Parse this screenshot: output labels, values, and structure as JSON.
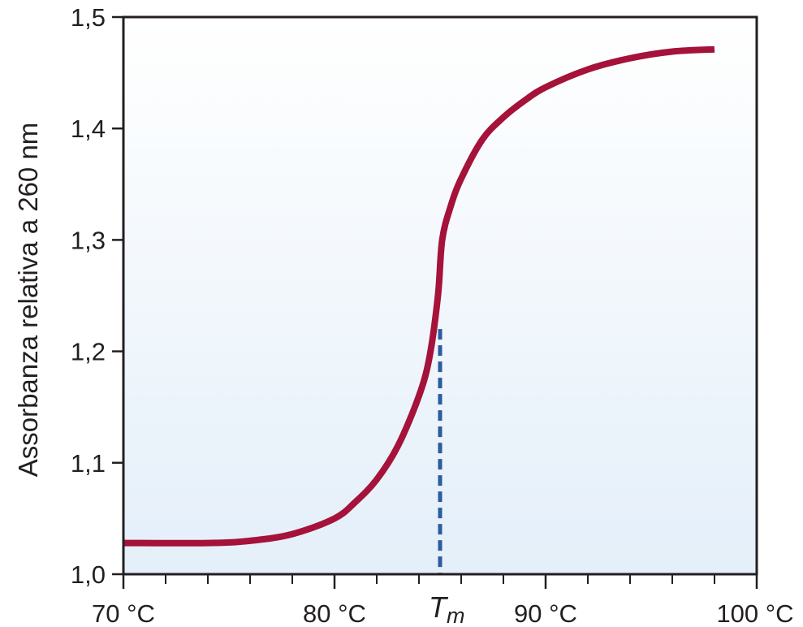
{
  "chart_data": {
    "type": "line",
    "title": "",
    "ylabel": "Assorbanza relativa a 260 nm",
    "xlabel": "",
    "xlim": [
      70,
      100
    ],
    "ylim": [
      1.0,
      1.5
    ],
    "x_ticks": [
      {
        "value": 70,
        "label": "70 °C"
      },
      {
        "value": 80,
        "label": "80 °C"
      },
      {
        "value": 90,
        "label": "90 °C"
      },
      {
        "value": 100,
        "label": "100 °C"
      }
    ],
    "x_minor_step": 1,
    "y_ticks": [
      {
        "value": 1.0,
        "label": "1,0"
      },
      {
        "value": 1.1,
        "label": "1,1"
      },
      {
        "value": 1.2,
        "label": "1,2"
      },
      {
        "value": 1.3,
        "label": "1,3"
      },
      {
        "value": 1.4,
        "label": "1,4"
      },
      {
        "value": 1.5,
        "label": "1,5"
      }
    ],
    "grid": false,
    "series": [
      {
        "color": "#a5123a",
        "x": [
          70,
          74,
          76,
          78,
          80,
          81,
          82,
          83,
          84,
          84.5,
          84.9,
          85.1,
          85.5,
          86,
          87,
          88,
          89,
          90,
          92,
          94,
          96,
          98
        ],
        "y": [
          1.028,
          1.028,
          1.03,
          1.036,
          1.05,
          1.065,
          1.085,
          1.115,
          1.16,
          1.195,
          1.25,
          1.3,
          1.33,
          1.355,
          1.39,
          1.41,
          1.425,
          1.437,
          1.453,
          1.463,
          1.469,
          1.471
        ]
      }
    ],
    "tm": {
      "label_main": "T",
      "label_sub": "m",
      "x": 85,
      "y": 1.22,
      "color": "#2a5c9e"
    },
    "background_gradient": {
      "top": "#ffffff",
      "bottom": "#e4eff9"
    }
  }
}
